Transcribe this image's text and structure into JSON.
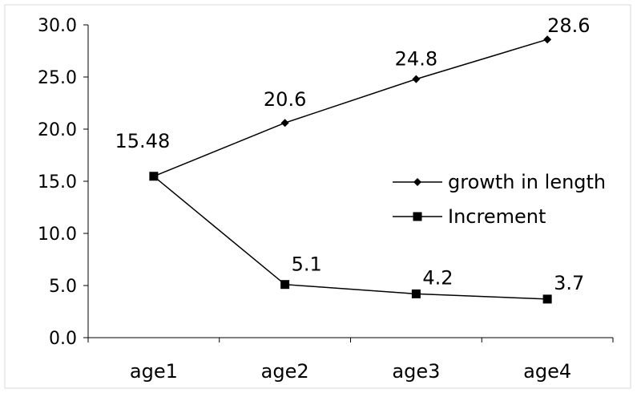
{
  "chart_data": {
    "type": "line",
    "categories": [
      "age1",
      "age2",
      "age3",
      "age4"
    ],
    "ylim": [
      0,
      30
    ],
    "yticks": [
      "0.0",
      "5.0",
      "10.0",
      "15.0",
      "20.0",
      "25.0",
      "30.0"
    ],
    "grid": false,
    "legend_position": "right",
    "series": [
      {
        "name": "growth in length",
        "marker": "diamond",
        "color": "#000000",
        "values": [
          15.48,
          20.6,
          24.8,
          28.6
        ],
        "labels": [
          "15.48",
          "20.6",
          "24.8",
          "28.6"
        ]
      },
      {
        "name": "Increment",
        "marker": "square",
        "color": "#000000",
        "values": [
          15.48,
          5.1,
          4.2,
          3.7
        ],
        "labels": [
          "",
          "5.1",
          "4.2",
          "3.7"
        ]
      }
    ]
  }
}
